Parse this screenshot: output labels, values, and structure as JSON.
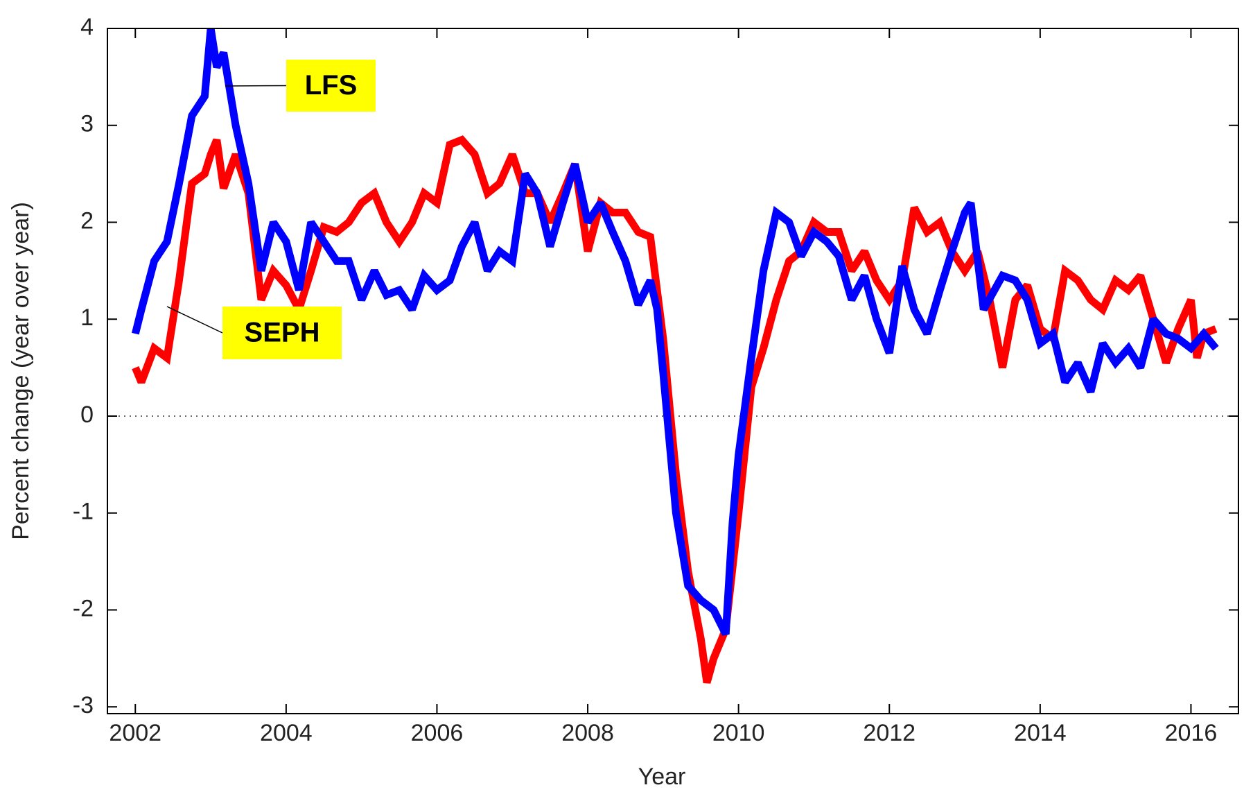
{
  "chart_data": {
    "type": "line",
    "x_label": "Year",
    "y_label": "Percent change (year over year)",
    "xlim": [
      2001.63,
      2016.63
    ],
    "ylim": [
      -3.07,
      4
    ],
    "xticks": [
      2002,
      2004,
      2006,
      2008,
      2010,
      2012,
      2014,
      2016
    ],
    "yticks": [
      -3,
      -2,
      -1,
      0,
      1,
      2,
      3,
      4
    ],
    "annotations": [
      "LFS",
      "SEPH"
    ],
    "series": [
      {
        "name": "LFS",
        "color": "#0000ff",
        "x": [
          2002.0,
          2002.08,
          2002.25,
          2002.42,
          2002.58,
          2002.75,
          2002.92,
          2003.0,
          2003.08,
          2003.17,
          2003.33,
          2003.5,
          2003.67,
          2003.83,
          2004.0,
          2004.17,
          2004.33,
          2004.5,
          2004.67,
          2004.83,
          2005.0,
          2005.17,
          2005.33,
          2005.5,
          2005.67,
          2005.83,
          2006.0,
          2006.17,
          2006.33,
          2006.5,
          2006.67,
          2006.83,
          2007.0,
          2007.17,
          2007.33,
          2007.5,
          2007.67,
          2007.83,
          2008.0,
          2008.17,
          2008.33,
          2008.5,
          2008.67,
          2008.83,
          2008.92,
          2009.0,
          2009.17,
          2009.33,
          2009.5,
          2009.67,
          2009.83,
          2009.92,
          2010.0,
          2010.17,
          2010.33,
          2010.5,
          2010.67,
          2010.83,
          2011.0,
          2011.17,
          2011.33,
          2011.5,
          2011.67,
          2011.83,
          2012.0,
          2012.17,
          2012.33,
          2012.5,
          2012.67,
          2012.83,
          2013.0,
          2013.08,
          2013.25,
          2013.5,
          2013.67,
          2013.83,
          2014.0,
          2014.17,
          2014.33,
          2014.5,
          2014.67,
          2014.83,
          2015.0,
          2015.17,
          2015.33,
          2015.5,
          2015.67,
          2015.83,
          2016.0,
          2016.17,
          2016.33
        ],
        "values": [
          0.85,
          1.1,
          1.6,
          1.8,
          2.4,
          3.1,
          3.3,
          4.0,
          3.6,
          3.75,
          3.0,
          2.4,
          1.5,
          2.0,
          1.8,
          1.3,
          2.0,
          1.8,
          1.6,
          1.6,
          1.2,
          1.5,
          1.25,
          1.3,
          1.1,
          1.45,
          1.3,
          1.4,
          1.75,
          2.0,
          1.5,
          1.7,
          1.6,
          2.5,
          2.3,
          1.75,
          2.2,
          2.6,
          2.0,
          2.2,
          1.9,
          1.6,
          1.15,
          1.4,
          1.1,
          0.45,
          -1.0,
          -1.75,
          -1.9,
          -2.0,
          -2.25,
          -1.1,
          -0.4,
          0.6,
          1.5,
          2.1,
          2.0,
          1.65,
          1.9,
          1.8,
          1.65,
          1.2,
          1.45,
          1.0,
          0.65,
          1.55,
          1.1,
          0.85,
          1.3,
          1.7,
          2.1,
          2.2,
          1.1,
          1.45,
          1.4,
          1.2,
          0.75,
          0.85,
          0.35,
          0.55,
          0.25,
          0.75,
          0.55,
          0.7,
          0.5,
          1.0,
          0.85,
          0.8,
          0.7,
          0.85,
          0.7
        ]
      },
      {
        "name": "SEPH",
        "color": "#ff0000",
        "x": [
          2002.0,
          2002.08,
          2002.25,
          2002.42,
          2002.58,
          2002.75,
          2002.92,
          2003.0,
          2003.08,
          2003.17,
          2003.33,
          2003.5,
          2003.67,
          2003.83,
          2004.0,
          2004.17,
          2004.33,
          2004.5,
          2004.67,
          2004.83,
          2005.0,
          2005.17,
          2005.33,
          2005.5,
          2005.67,
          2005.83,
          2006.0,
          2006.17,
          2006.33,
          2006.5,
          2006.67,
          2006.83,
          2007.0,
          2007.17,
          2007.33,
          2007.5,
          2007.67,
          2007.83,
          2008.0,
          2008.17,
          2008.33,
          2008.5,
          2008.67,
          2008.83,
          2009.0,
          2009.17,
          2009.33,
          2009.5,
          2009.58,
          2009.67,
          2009.83,
          2010.0,
          2010.17,
          2010.33,
          2010.5,
          2010.67,
          2010.83,
          2011.0,
          2011.17,
          2011.33,
          2011.5,
          2011.67,
          2011.83,
          2012.0,
          2012.17,
          2012.33,
          2012.5,
          2012.67,
          2012.83,
          2013.0,
          2013.17,
          2013.33,
          2013.5,
          2013.67,
          2013.83,
          2014.0,
          2014.17,
          2014.33,
          2014.5,
          2014.67,
          2014.83,
          2015.0,
          2015.17,
          2015.33,
          2015.5,
          2015.67,
          2015.83,
          2016.0,
          2016.08,
          2016.17,
          2016.33
        ],
        "values": [
          0.5,
          0.35,
          0.7,
          0.6,
          1.4,
          2.4,
          2.5,
          2.7,
          2.85,
          2.35,
          2.7,
          2.3,
          1.2,
          1.5,
          1.35,
          1.1,
          1.5,
          1.95,
          1.9,
          2.0,
          2.2,
          2.3,
          2.0,
          1.8,
          2.0,
          2.3,
          2.2,
          2.8,
          2.85,
          2.7,
          2.3,
          2.4,
          2.7,
          2.3,
          2.3,
          2.0,
          2.3,
          2.6,
          1.7,
          2.2,
          2.1,
          2.1,
          1.9,
          1.85,
          0.8,
          -0.6,
          -1.6,
          -2.3,
          -2.75,
          -2.5,
          -2.2,
          -1.0,
          0.3,
          0.7,
          1.2,
          1.6,
          1.7,
          2.0,
          1.9,
          1.9,
          1.5,
          1.7,
          1.4,
          1.2,
          1.4,
          2.15,
          1.9,
          2.0,
          1.7,
          1.5,
          1.7,
          1.2,
          0.5,
          1.2,
          1.35,
          0.9,
          0.8,
          1.5,
          1.4,
          1.2,
          1.1,
          1.4,
          1.3,
          1.45,
          1.0,
          0.55,
          0.9,
          1.2,
          0.6,
          0.85,
          0.9
        ]
      }
    ]
  }
}
